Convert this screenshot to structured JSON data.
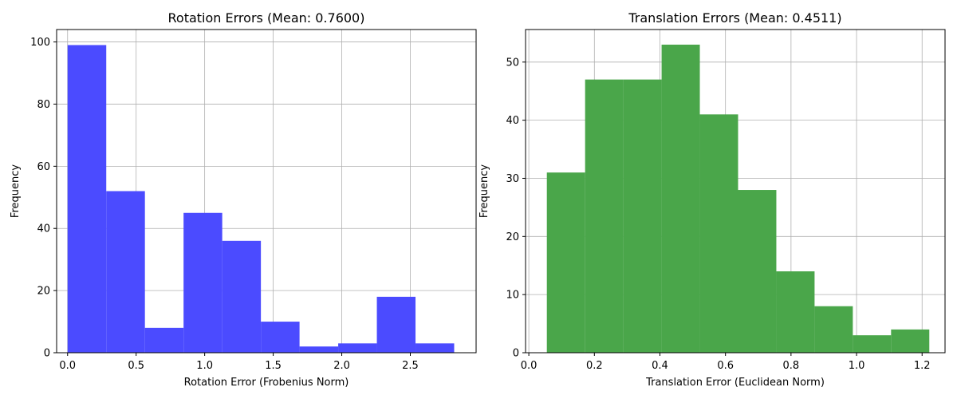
{
  "chart_data": [
    {
      "type": "bar",
      "title": "Rotation Errors (Mean: 0.7600)",
      "xlabel": "Rotation Error (Frobenius Norm)",
      "ylabel": "Frequency",
      "xlim": [
        -0.08,
        2.98
      ],
      "ylim": [
        0,
        104
      ],
      "xticks": [
        0.0,
        0.5,
        1.0,
        1.5,
        2.0,
        2.5
      ],
      "xtick_labels": [
        "0.0",
        "0.5",
        "1.0",
        "1.5",
        "2.0",
        "2.5"
      ],
      "yticks": [
        0,
        20,
        40,
        60,
        80,
        100
      ],
      "ytick_labels": [
        "0",
        "20",
        "40",
        "60",
        "80",
        "100"
      ],
      "bin_edges": [
        0.0,
        0.282,
        0.564,
        0.846,
        1.128,
        1.41,
        1.692,
        1.974,
        2.256,
        2.538,
        2.82
      ],
      "values": [
        99,
        52,
        8,
        45,
        36,
        10,
        2,
        3,
        18,
        3
      ],
      "color": "#4b4bff",
      "grid": true
    },
    {
      "type": "bar",
      "title": "Translation Errors (Mean: 0.4511)",
      "xlabel": "Translation Error (Euclidean Norm)",
      "ylabel": "Frequency",
      "xlim": [
        -0.01,
        1.27
      ],
      "ylim": [
        0,
        55.6
      ],
      "xticks": [
        0.0,
        0.2,
        0.4,
        0.6,
        0.8,
        1.0,
        1.2
      ],
      "xtick_labels": [
        "0.0",
        "0.2",
        "0.4",
        "0.6",
        "0.8",
        "1.0",
        "1.2"
      ],
      "yticks": [
        0,
        10,
        20,
        30,
        40,
        50
      ],
      "ytick_labels": [
        "0",
        "10",
        "20",
        "30",
        "40",
        "50"
      ],
      "bin_edges": [
        0.055,
        0.1717,
        0.2884,
        0.4051,
        0.5218,
        0.6385,
        0.7552,
        0.8719,
        0.9886,
        1.1053,
        1.222
      ],
      "values": [
        31,
        47,
        47,
        53,
        41,
        28,
        14,
        8,
        3,
        4
      ],
      "color": "#4aa64a",
      "grid": true
    }
  ]
}
